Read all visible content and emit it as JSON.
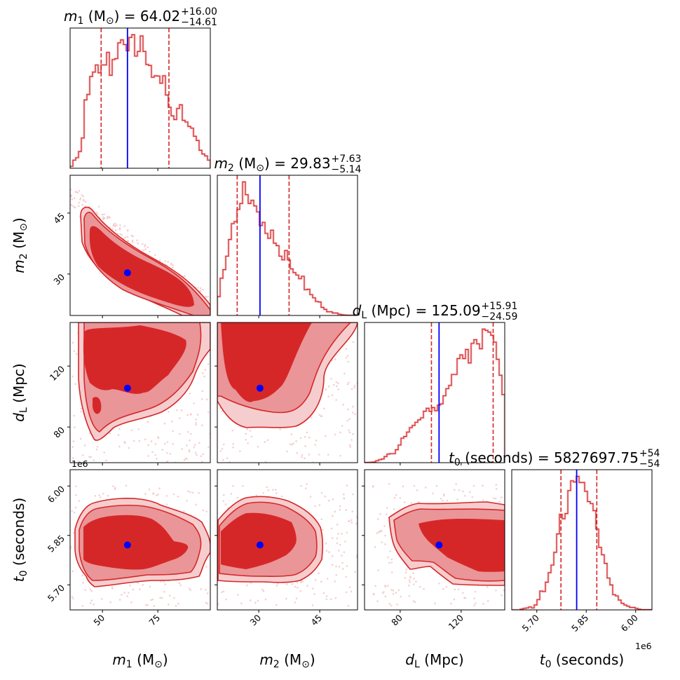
{
  "chart_data": {
    "type": "corner",
    "colors": {
      "hist_line": "#d62728",
      "contour_line": "#d62728",
      "contour_inner": "#d62728",
      "contour_middle": "#ea9598",
      "contour_outer": "#f6cdce",
      "scatter": "#f2c4c5",
      "truth": "#0000ff",
      "quantile": "#d62728"
    },
    "parameters": [
      {
        "key": "m1",
        "label": [
          {
            "t": "m",
            "italic": true
          },
          {
            "t": "1",
            "sub": true
          },
          {
            "t": " (M"
          },
          {
            "t": "⊙",
            "sub": true
          },
          {
            "t": ")"
          }
        ],
        "title": {
          "value": " = 64.02",
          "plus": "+16.00",
          "minus": "−14.61"
        },
        "range": [
          35.4,
          98.7
        ],
        "ticks": [
          50,
          75
        ],
        "tick_labels": [
          "50",
          "75"
        ],
        "truth": 61.3,
        "quantiles": [
          49.41,
          80.02
        ],
        "hist": [
          8,
          33,
          43,
          68,
          123,
          278,
          300,
          373,
          391,
          420,
          388,
          420,
          420,
          471,
          378,
          442,
          446,
          510,
          522,
          503,
          478,
          532,
          543,
          456,
          475,
          538,
          475,
          422,
          418,
          370,
          376,
          375,
          346,
          376,
          298,
          248,
          213,
          198,
          243,
          258,
          195,
          188,
          170,
          163,
          130,
          113,
          73,
          58,
          50,
          33
        ]
      },
      {
        "key": "m2",
        "label": [
          {
            "t": "m",
            "italic": true
          },
          {
            "t": "2",
            "sub": true
          },
          {
            "t": " (M"
          },
          {
            "t": "⊙",
            "sub": true
          },
          {
            "t": ")"
          }
        ],
        "title": {
          "value": " = 29.83",
          "plus": "+7.63",
          "minus": "−5.14"
        },
        "range": [
          19.8,
          54.3
        ],
        "ticks": [
          30,
          45
        ],
        "tick_labels": [
          "30",
          "45"
        ],
        "truth": 30.3,
        "quantiles": [
          24.69,
          37.46
        ],
        "hist": [
          77,
          152,
          187,
          242,
          310,
          375,
          383,
          433,
          457,
          545,
          493,
          457,
          470,
          447,
          423,
          367,
          380,
          335,
          315,
          348,
          295,
          285,
          242,
          227,
          265,
          227,
          190,
          175,
          165,
          150,
          160,
          105,
          107,
          85,
          72,
          57,
          55,
          33,
          25,
          15,
          15,
          10,
          10,
          5,
          3,
          2,
          1,
          1,
          1,
          0
        ]
      },
      {
        "key": "dL",
        "label": [
          {
            "t": "d",
            "italic": true
          },
          {
            "t": "L",
            "sub": true
          },
          {
            "t": " (Mpc)"
          }
        ],
        "title": {
          "value": " = 125.09",
          "plus": "+15.91",
          "minus": "−24.59"
        },
        "range": [
          56.6,
          148.6
        ],
        "ticks": [
          80,
          120
        ],
        "tick_labels": [
          "80",
          "120"
        ],
        "truth": 105.5,
        "quantiles": [
          100.5,
          141.0
        ],
        "hist": [
          1,
          1,
          2,
          3,
          8,
          12,
          15,
          25,
          35,
          37,
          37,
          53,
          72,
          100,
          107,
          125,
          143,
          152,
          165,
          175,
          183,
          210,
          222,
          210,
          225,
          212,
          235,
          240,
          273,
          302,
          315,
          360,
          360,
          425,
          440,
          425,
          462,
          407,
          487,
          502,
          485,
          465,
          545,
          540,
          533,
          520,
          492,
          422,
          357,
          278
        ]
      },
      {
        "key": "t0",
        "label": [
          {
            "t": "t",
            "italic": true
          },
          {
            "t": "0",
            "sub": true
          },
          {
            "t": " (seconds)"
          }
        ],
        "title": {
          "value": " = 5827697.75",
          "plus": "+54",
          "minus": "−54"
        },
        "range": [
          5624000,
          6049500
        ],
        "ticks": [
          5700000,
          5850000,
          6000000
        ],
        "tick_labels": [
          "5.70",
          "5.85",
          "6.00"
        ],
        "offset_text": "1e6",
        "truth": 5821000,
        "quantiles": [
          5773300,
          5882100
        ],
        "hist": [
          0,
          0,
          0,
          3,
          6,
          8,
          12,
          8,
          20,
          42,
          77,
          75,
          113,
          152,
          183,
          235,
          310,
          390,
          372,
          393,
          487,
          527,
          522,
          545,
          520,
          520,
          484,
          442,
          434,
          405,
          330,
          255,
          225,
          190,
          130,
          102,
          62,
          57,
          40,
          27,
          20,
          15,
          10,
          10,
          6,
          3,
          1,
          1,
          1,
          1
        ]
      }
    ]
  }
}
